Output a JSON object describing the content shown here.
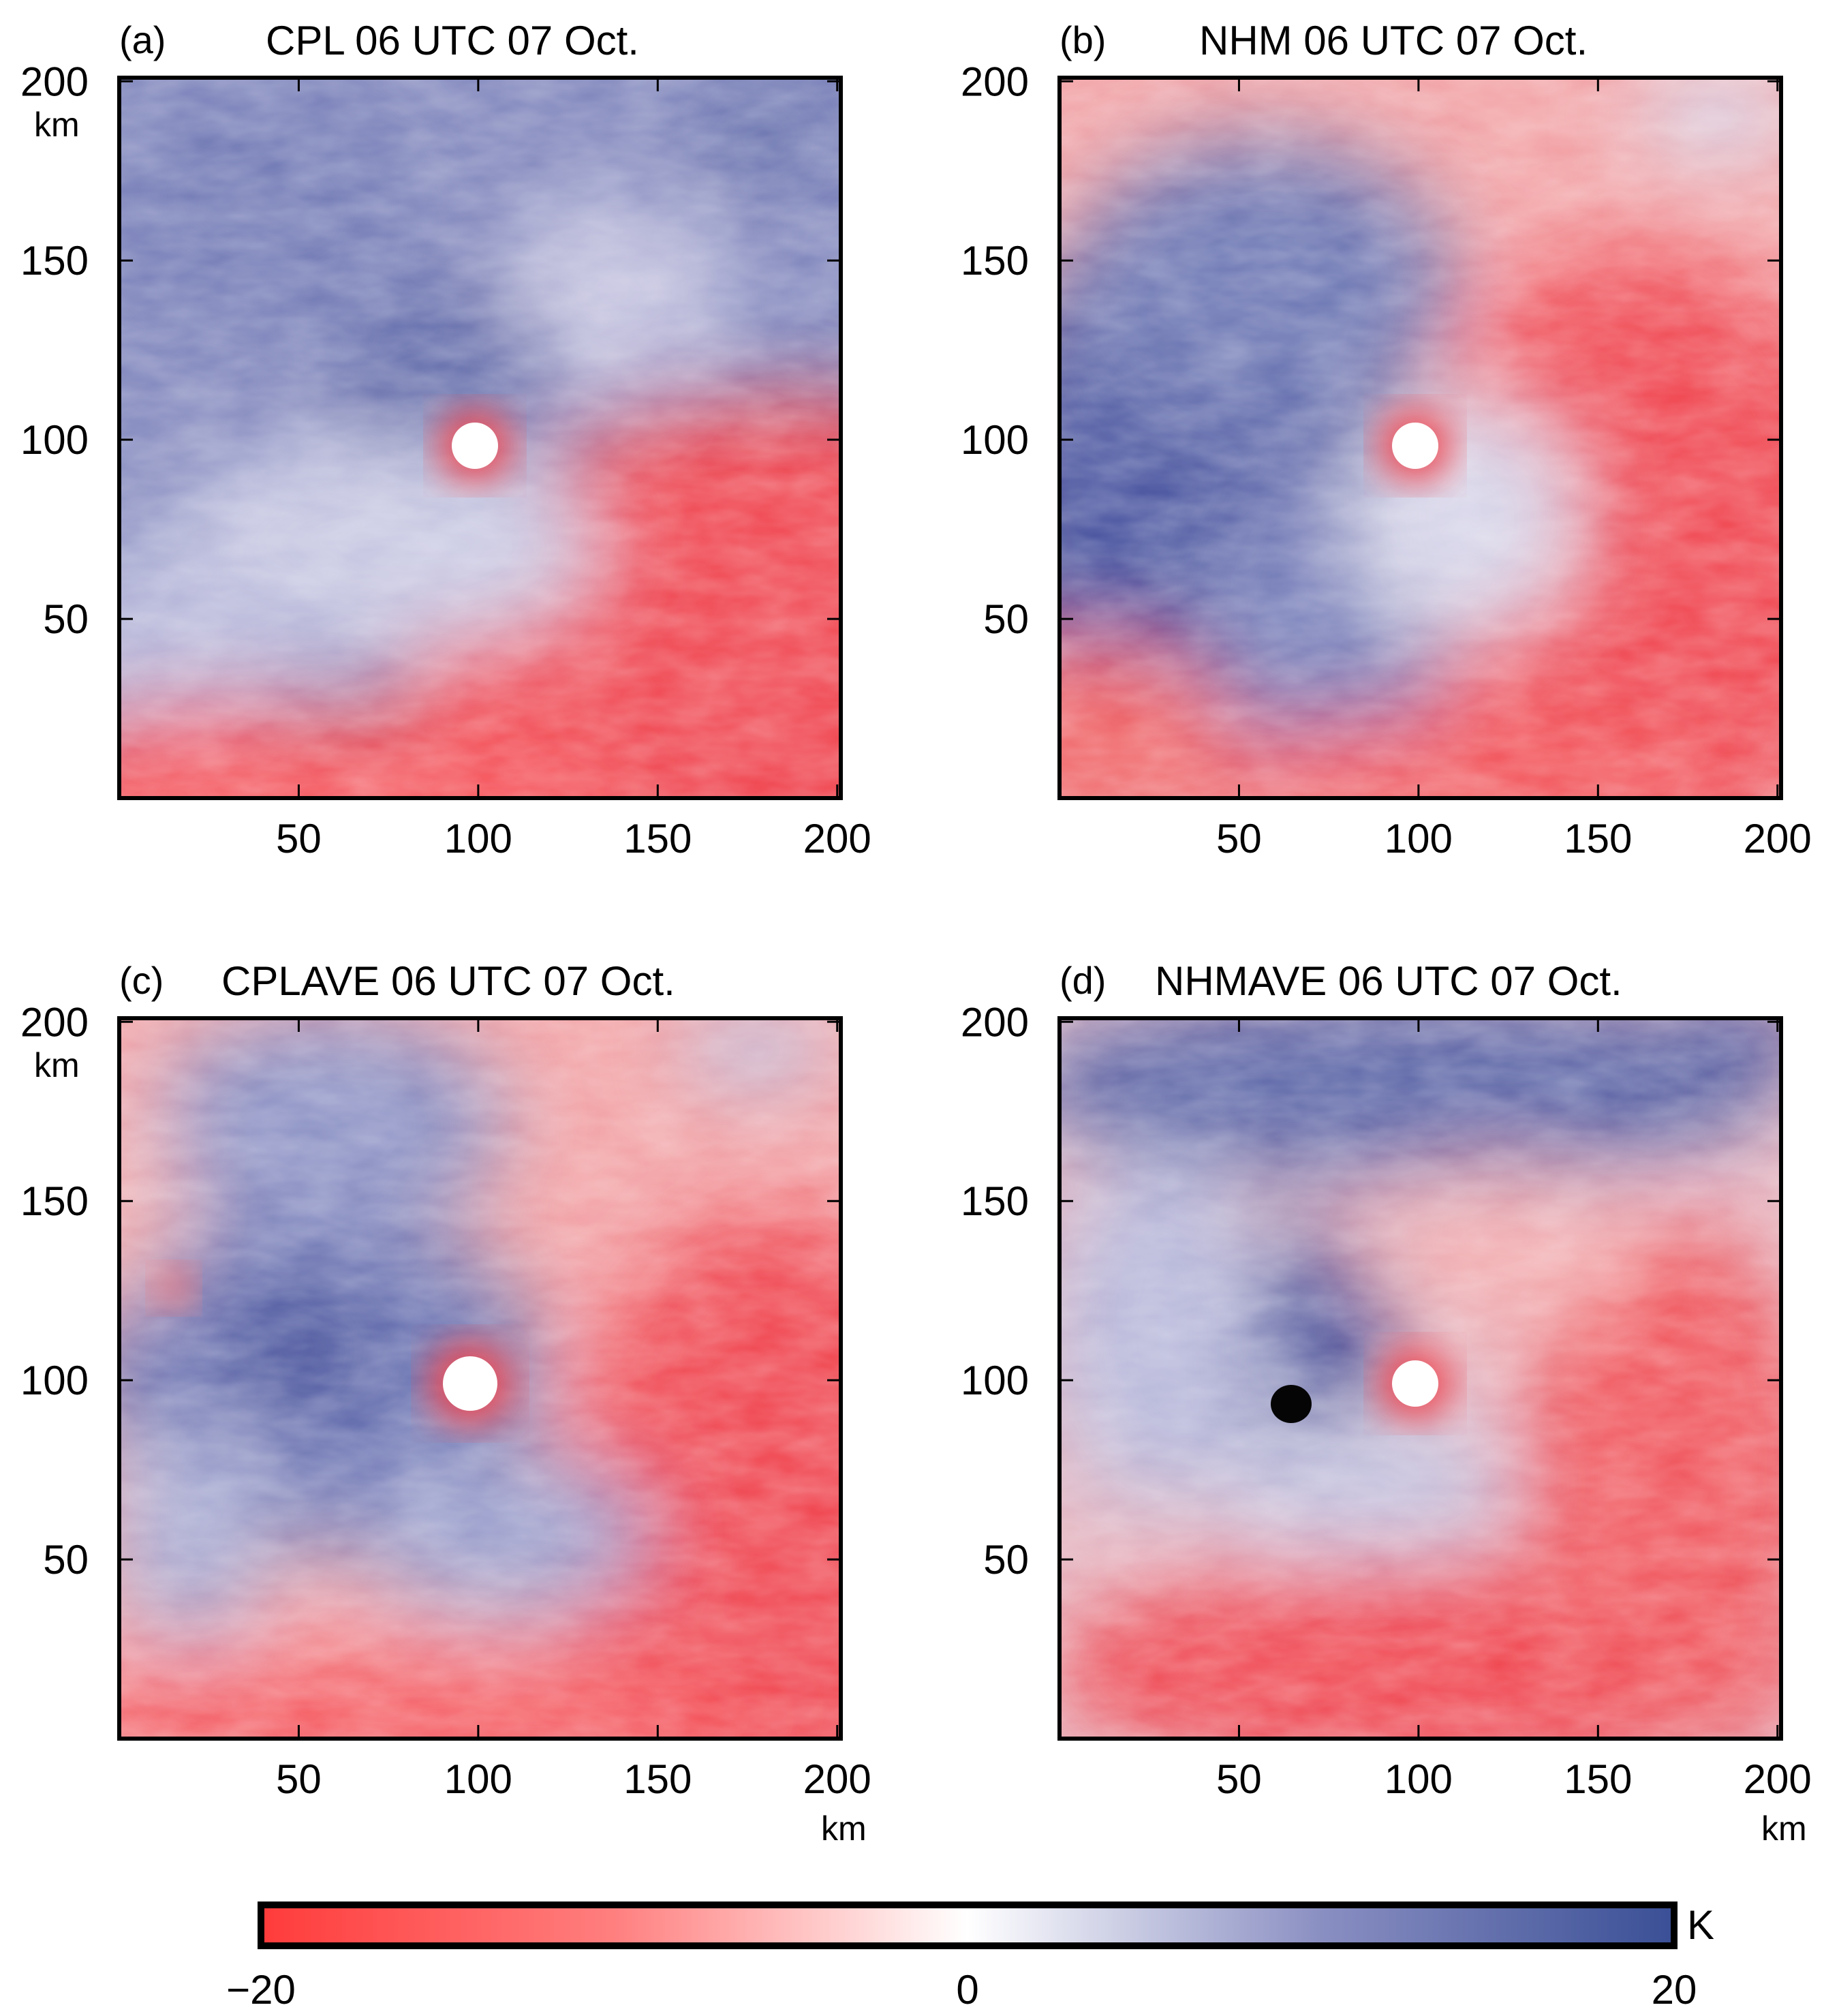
{
  "figure": {
    "colorbar": {
      "min_label": "−20",
      "mid_label": "0",
      "max_label": "20",
      "unit": "K",
      "min": -20,
      "max": 20,
      "colors": {
        "negative": "#ff3b3b",
        "zero": "#ffffff",
        "positive": "#3a4f96"
      }
    }
  },
  "chart_data": [
    {
      "type": "heatmap",
      "panel": "(a)",
      "title": "CPL 06 UTC 07 Oct.",
      "xlabel": "",
      "ylabel": "km",
      "xlim": [
        0,
        201
      ],
      "ylim": [
        0,
        201
      ],
      "xticks": [
        "50",
        "100",
        "150",
        "200"
      ],
      "yticks": [
        "50",
        "100",
        "150",
        "200"
      ],
      "center": [
        100,
        100
      ],
      "warm_sector": "south-east"
    },
    {
      "type": "heatmap",
      "panel": "(b)",
      "title": "NHM 06 UTC 07 Oct.",
      "xlabel": "",
      "ylabel": "",
      "xlim": [
        0,
        201
      ],
      "ylim": [
        0,
        201
      ],
      "xticks": [
        "50",
        "100",
        "150",
        "200"
      ],
      "yticks": [
        "50",
        "100",
        "150",
        "200"
      ],
      "center": [
        100,
        100
      ],
      "warm_sector": "east"
    },
    {
      "type": "heatmap",
      "panel": "(c)",
      "title": "CPLAVE 06 UTC 07 Oct.",
      "xlabel": "km",
      "ylabel": "km",
      "xlim": [
        0,
        201
      ],
      "ylim": [
        0,
        201
      ],
      "xticks": [
        "50",
        "100",
        "150",
        "200"
      ],
      "yticks": [
        "50",
        "100",
        "150",
        "200"
      ],
      "center": [
        100,
        100
      ],
      "warm_sector": "east"
    },
    {
      "type": "heatmap",
      "panel": "(d)",
      "title": "NHMAVE 06 UTC 07 Oct.",
      "xlabel": "km",
      "ylabel": "",
      "xlim": [
        0,
        201
      ],
      "ylim": [
        0,
        201
      ],
      "xticks": [
        "50",
        "100",
        "150",
        "200"
      ],
      "yticks": [
        "50",
        "100",
        "150",
        "200"
      ],
      "center": [
        100,
        100
      ],
      "warm_sector": "south-east"
    }
  ]
}
